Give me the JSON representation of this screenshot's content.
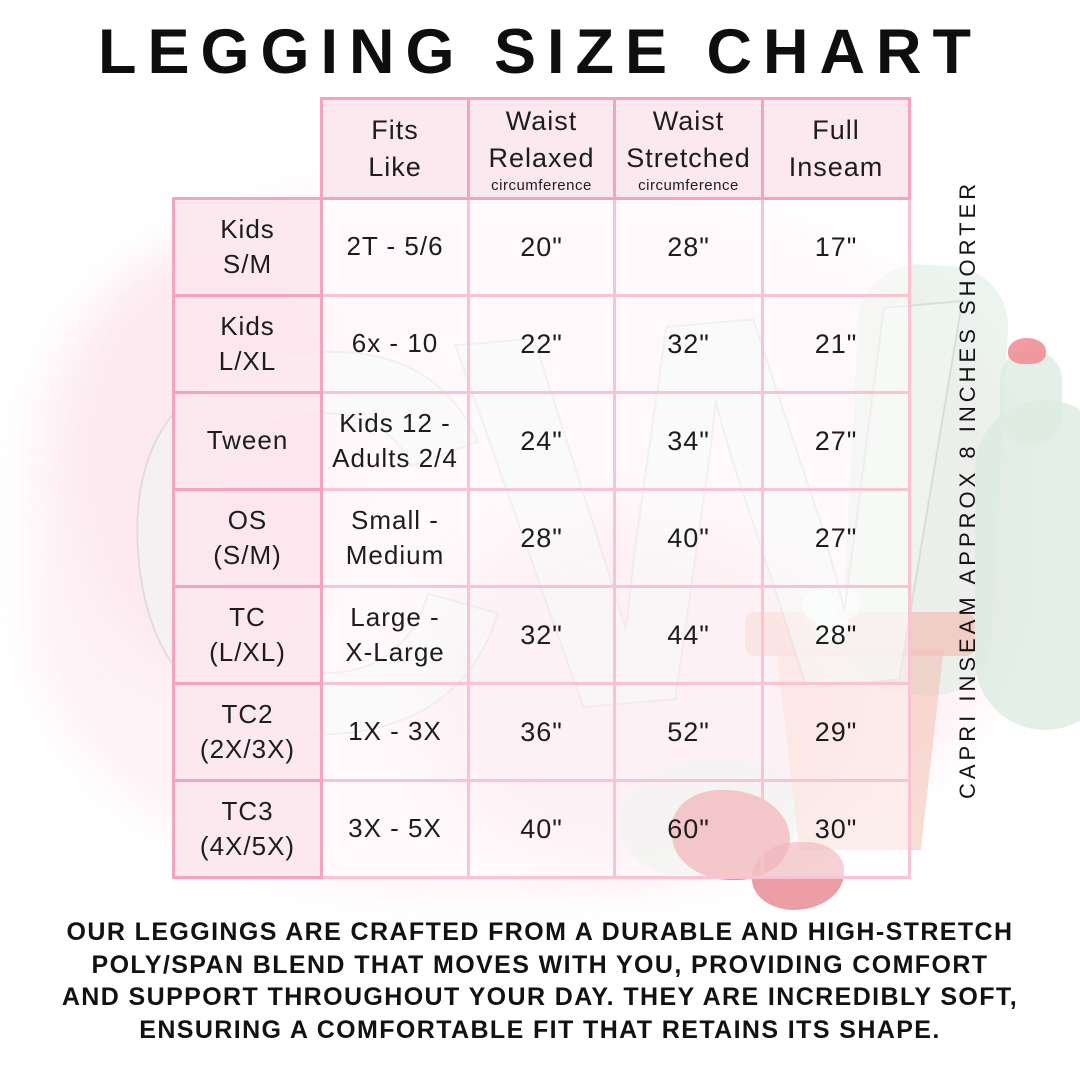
{
  "title": "LEGGING SIZE CHART",
  "watermark_text": "CW",
  "size_chart": {
    "headers": [
      {
        "title": "Fits\nLike",
        "sub": ""
      },
      {
        "title": "Waist\nRelaxed",
        "sub": "circumference"
      },
      {
        "title": "Waist\nStretched",
        "sub": "circumference"
      },
      {
        "title": "Full\nInseam",
        "sub": ""
      }
    ],
    "rows": [
      {
        "size": "Kids\nS/M",
        "fits_like": "2T - 5/6",
        "waist_relaxed": "20\"",
        "waist_stretched": "28\"",
        "full_inseam": "17\""
      },
      {
        "size": "Kids\nL/XL",
        "fits_like": "6x - 10",
        "waist_relaxed": "22\"",
        "waist_stretched": "32\"",
        "full_inseam": "21\""
      },
      {
        "size": "Tween",
        "fits_like": "Kids 12 -\nAdults 2/4",
        "waist_relaxed": "24\"",
        "waist_stretched": "34\"",
        "full_inseam": "27\""
      },
      {
        "size": "OS\n(S/M)",
        "fits_like": "Small -\nMedium",
        "waist_relaxed": "28\"",
        "waist_stretched": "40\"",
        "full_inseam": "27\""
      },
      {
        "size": "TC\n(L/XL)",
        "fits_like": "Large -\nX-Large",
        "waist_relaxed": "32\"",
        "waist_stretched": "44\"",
        "full_inseam": "28\""
      },
      {
        "size": "TC2\n(2X/3X)",
        "fits_like": "1X - 3X",
        "waist_relaxed": "36\"",
        "waist_stretched": "52\"",
        "full_inseam": "29\""
      },
      {
        "size": "TC3\n(4X/5X)",
        "fits_like": "3X - 5X",
        "waist_relaxed": "40\"",
        "waist_stretched": "60\"",
        "full_inseam": "30\""
      }
    ]
  },
  "side_note": "CAPRI INSEAM APPROX 8 INCHES SHORTER",
  "description": "OUR LEGGINGS ARE CRAFTED FROM A DURABLE AND HIGH-STRETCH\nPOLY/SPAN BLEND THAT MOVES WITH YOU, PROVIDING COMFORT\nAND SUPPORT THROUGHOUT YOUR DAY. THEY ARE INCREDIBLY SOFT,\nENSURING A COMFORTABLE FIT THAT RETAINS ITS SHAPE.",
  "colors": {
    "border_outer_pink": "#f2a4c0",
    "border_inner_pink": "#f8c4d4",
    "cell_pink": "#fce7ee",
    "text": "#1d1d1d",
    "mint": "#dcebe1",
    "salmon_pot": "#f3c0b4",
    "red_flower": "#e4616c"
  }
}
